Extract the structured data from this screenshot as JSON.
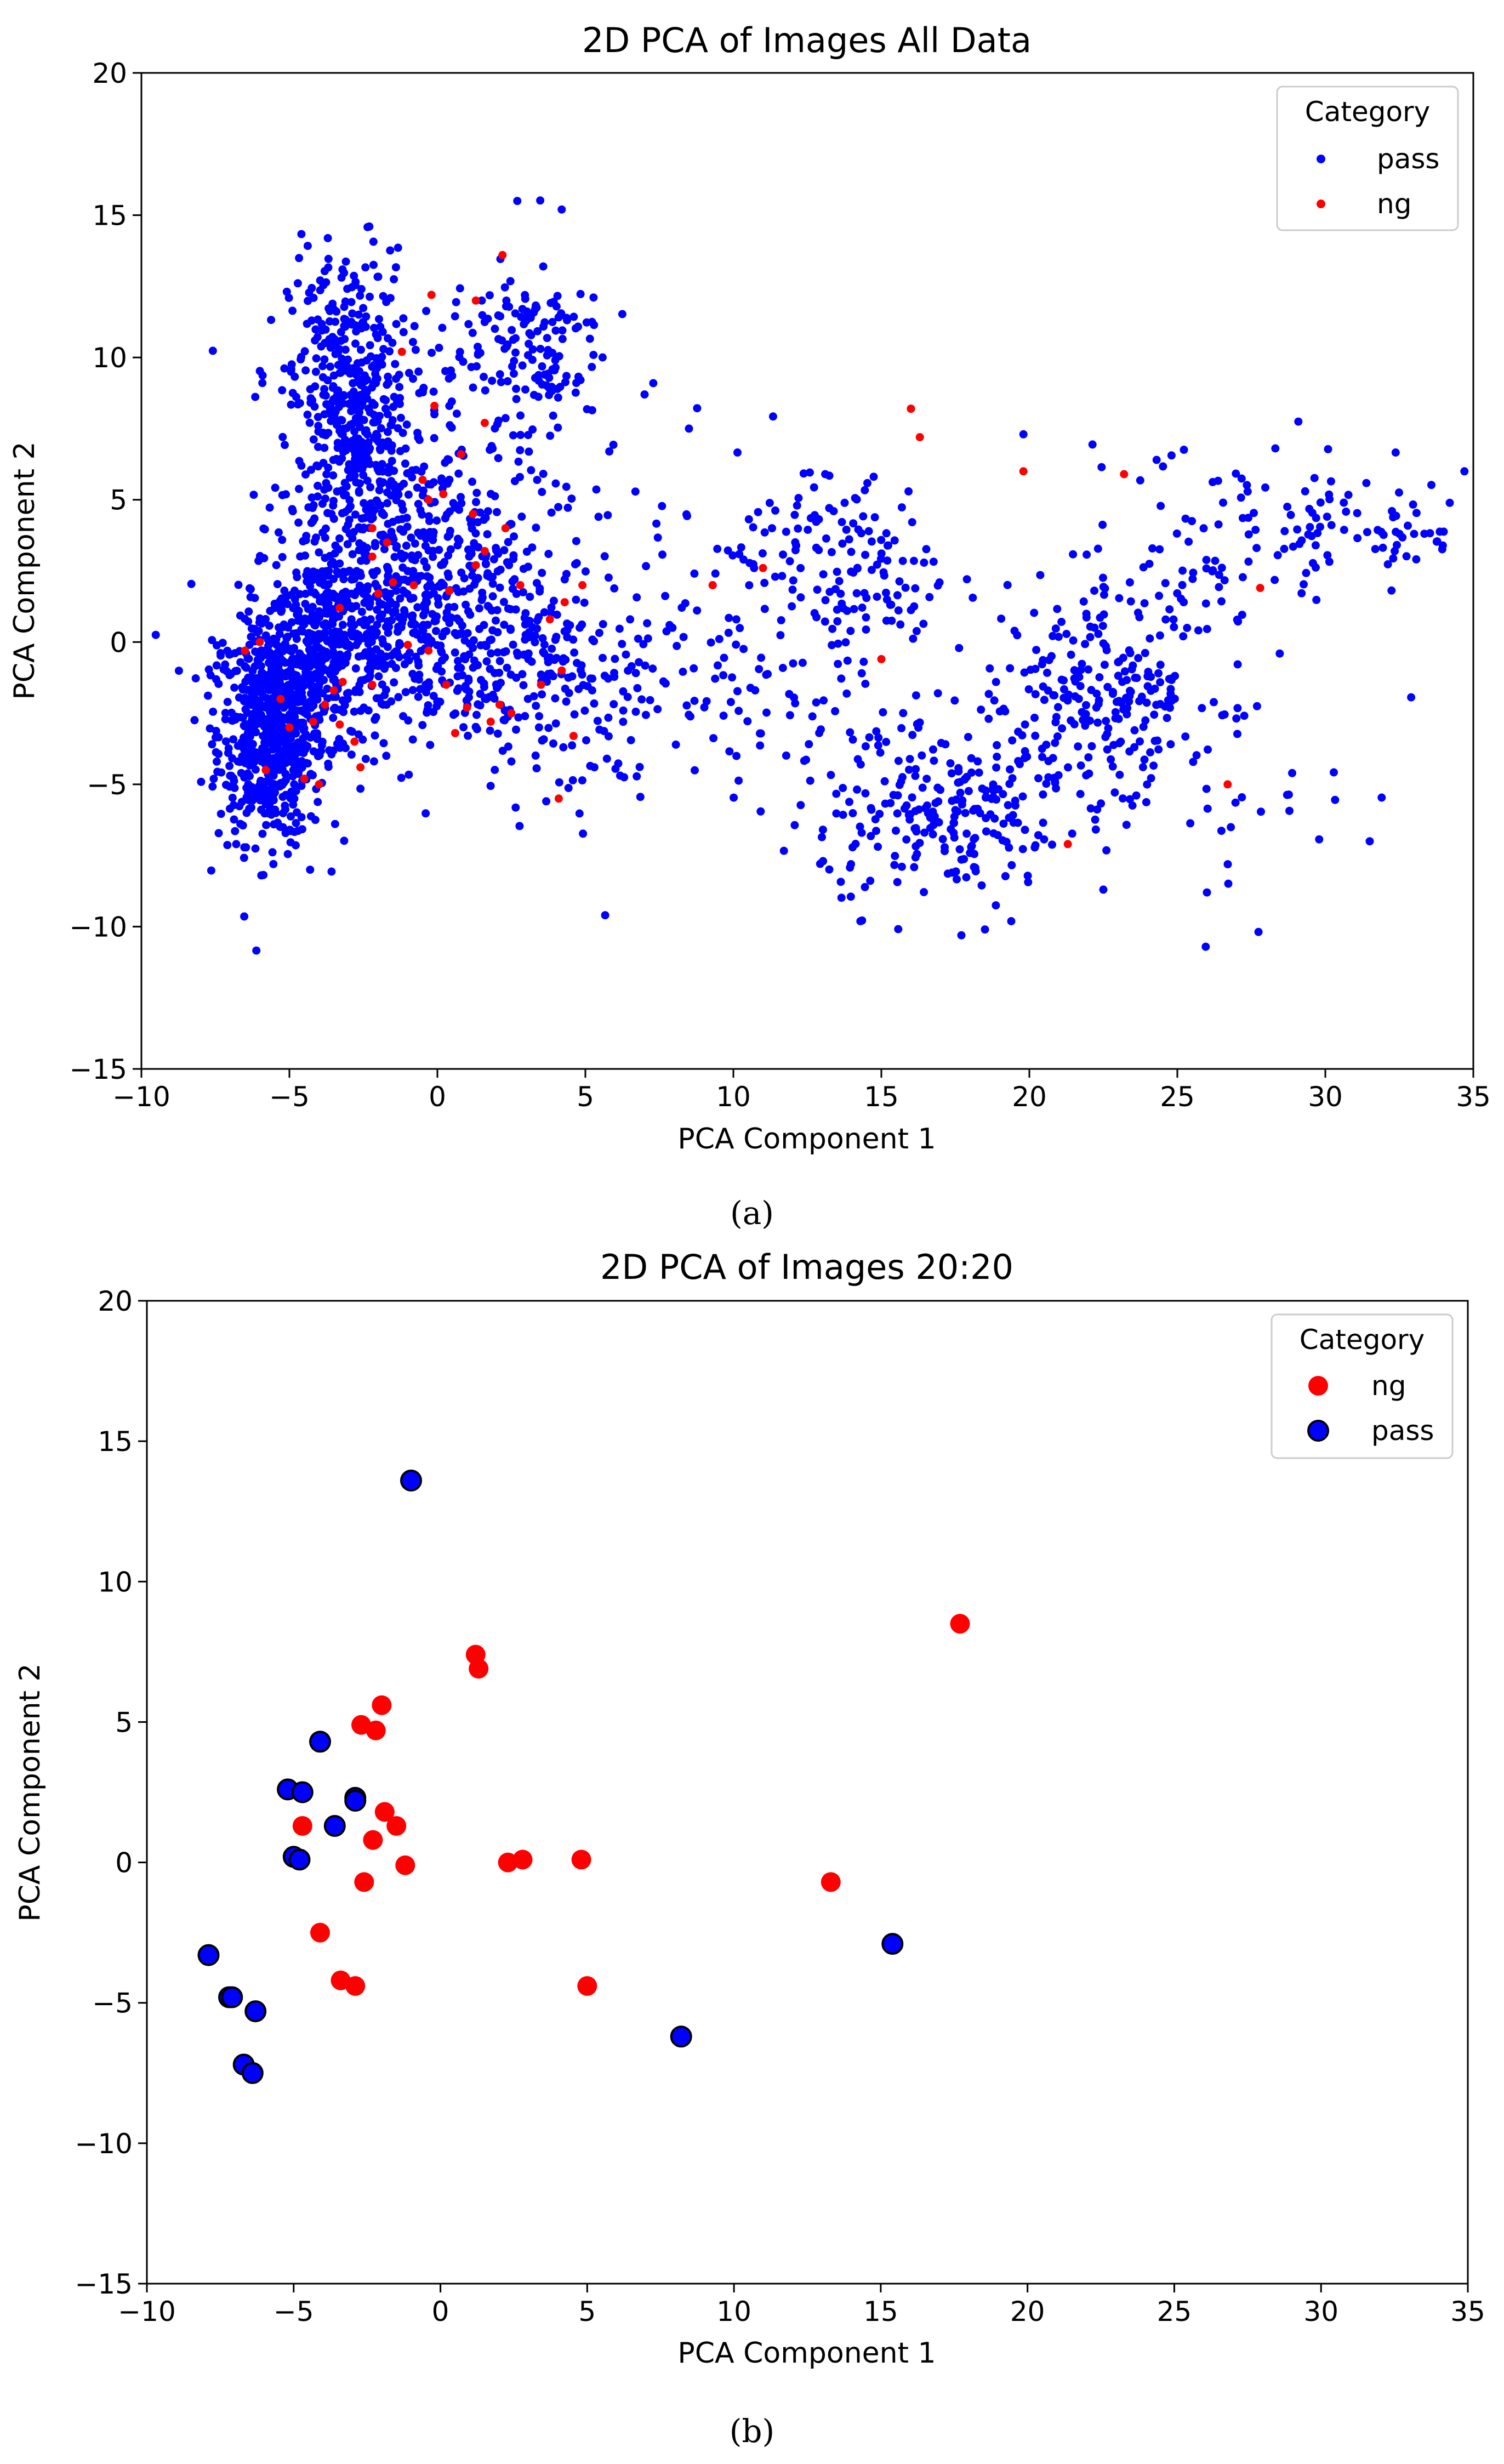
{
  "colors": {
    "pass": "#0000ff",
    "ng": "#ff0000",
    "marker_edge": "#000000",
    "axis": "#000000",
    "legend_border": "#cccccc"
  },
  "chart_data": [
    {
      "id": "a",
      "type": "scatter",
      "title": "2D PCA of Images All Data",
      "xlabel": "PCA Component 1",
      "ylabel": "PCA Component 2",
      "xlim": [
        -10,
        35
      ],
      "ylim": [
        -15,
        20
      ],
      "xticks": [
        -10,
        -5,
        0,
        5,
        10,
        15,
        20,
        25,
        30,
        35
      ],
      "yticks": [
        -15,
        -10,
        -5,
        0,
        5,
        10,
        15,
        20
      ],
      "xtick_labels": [
        "−10",
        "−5",
        "0",
        "5",
        "10",
        "15",
        "20",
        "25",
        "30",
        "35"
      ],
      "ytick_labels": [
        "−15",
        "−10",
        "−5",
        "0",
        "5",
        "10",
        "15",
        "20"
      ],
      "grid": false,
      "caption": "(a)",
      "legend": {
        "title": "Category",
        "position": "top-right",
        "entries": [
          {
            "name": "pass",
            "color": "#0000ff"
          },
          {
            "name": "ng",
            "color": "#ff0000"
          }
        ]
      },
      "series": [
        {
          "name": "pass",
          "color": "#0000ff",
          "marker": "small-dot",
          "clusters": [
            {
              "cx": -5.6,
              "cy": -3.2,
              "sx": 0.9,
              "sy": 1.9,
              "n": 650
            },
            {
              "cx": -3.0,
              "cy": 8.5,
              "sx": 1.0,
              "sy": 2.6,
              "n": 420
            },
            {
              "cx": -3.5,
              "cy": 0.0,
              "sx": 1.6,
              "sy": 1.6,
              "n": 500
            },
            {
              "cx": -1.5,
              "cy": 3.5,
              "sx": 1.8,
              "sy": 3.2,
              "n": 320
            },
            {
              "cx": 1.5,
              "cy": 0.0,
              "sx": 1.8,
              "sy": 2.0,
              "n": 280
            },
            {
              "cx": 3.0,
              "cy": 10.5,
              "sx": 1.3,
              "sy": 1.4,
              "n": 130
            },
            {
              "cx": 1.0,
              "cy": 6.5,
              "sx": 2.0,
              "sy": 2.5,
              "n": 120
            },
            {
              "cx": 5.5,
              "cy": -1.0,
              "sx": 1.8,
              "sy": 2.8,
              "n": 110
            },
            {
              "cx": 12.0,
              "cy": 3.0,
              "sx": 1.5,
              "sy": 2.0,
              "n": 90
            },
            {
              "cx": 15.0,
              "cy": 2.5,
              "sx": 1.2,
              "sy": 1.6,
              "n": 70
            },
            {
              "cx": 12.0,
              "cy": -3.5,
              "sx": 1.8,
              "sy": 2.2,
              "n": 60
            },
            {
              "cx": 17.0,
              "cy": -6.5,
              "sx": 2.0,
              "sy": 1.4,
              "n": 170
            },
            {
              "cx": 22.5,
              "cy": -1.5,
              "sx": 2.0,
              "sy": 1.8,
              "n": 230
            },
            {
              "cx": 20.0,
              "cy": -5.0,
              "sx": 2.5,
              "sy": 2.0,
              "n": 80
            },
            {
              "cx": 26.5,
              "cy": 3.5,
              "sx": 2.5,
              "sy": 1.8,
              "n": 70
            },
            {
              "cx": 31.5,
              "cy": 4.0,
              "sx": 2.0,
              "sy": 1.2,
              "n": 70
            },
            {
              "cx": 27.0,
              "cy": -6.5,
              "sx": 2.5,
              "sy": 1.5,
              "n": 20
            },
            {
              "cx": 8.5,
              "cy": 0.0,
              "sx": 1.5,
              "sy": 3.0,
              "n": 35
            }
          ],
          "points": [
            [
              2.7,
              15.5
            ],
            [
              4.2,
              15.2
            ],
            [
              -2.3,
              14.6
            ],
            [
              1.5,
              12.0
            ],
            [
              7.0,
              8.7
            ],
            [
              16.0,
              8.2
            ],
            [
              8.5,
              7.5
            ],
            [
              19.8,
              7.3
            ],
            [
              24.3,
              6.4
            ],
            [
              34.7,
              6.0
            ],
            [
              31.5,
              -7.0
            ],
            [
              26.0,
              -8.8
            ],
            [
              22.5,
              -8.7
            ],
            [
              18.5,
              -10.1
            ],
            [
              -4.3,
              -8.0
            ],
            [
              10.7,
              2.6
            ],
            [
              9.3,
              2.0
            ],
            [
              33.0,
              3.8
            ]
          ]
        },
        {
          "name": "ng",
          "color": "#ff0000",
          "marker": "small-dot",
          "points": [
            [
              2.2,
              13.6
            ],
            [
              -0.2,
              12.2
            ],
            [
              1.3,
              12.0
            ],
            [
              -1.2,
              10.2
            ],
            [
              -0.1,
              8.3
            ],
            [
              1.6,
              7.7
            ],
            [
              0.8,
              6.6
            ],
            [
              -0.3,
              5.0
            ],
            [
              0.2,
              5.2
            ],
            [
              -2.2,
              4.0
            ],
            [
              -1.7,
              3.5
            ],
            [
              -2.2,
              3.0
            ],
            [
              -2.0,
              1.7
            ],
            [
              -1.5,
              2.1
            ],
            [
              -0.8,
              2.0
            ],
            [
              0.4,
              1.8
            ],
            [
              1.6,
              3.2
            ],
            [
              2.8,
              2.0
            ],
            [
              1.3,
              2.7
            ],
            [
              -0.3,
              -0.3
            ],
            [
              -3.3,
              1.2
            ],
            [
              -3.2,
              -1.4
            ],
            [
              -3.5,
              -1.7
            ],
            [
              -3.8,
              -2.2
            ],
            [
              -3.3,
              -2.9
            ],
            [
              -2.2,
              -1.5
            ],
            [
              -1.0,
              -0.1
            ],
            [
              0.3,
              -1.5
            ],
            [
              1.0,
              -2.3
            ],
            [
              1.8,
              -2.8
            ],
            [
              2.5,
              -2.5
            ],
            [
              0.6,
              -3.2
            ],
            [
              -4.2,
              -2.8
            ],
            [
              -5.0,
              -3.0
            ],
            [
              -5.3,
              -2.0
            ],
            [
              -5.8,
              -4.5
            ],
            [
              -6.5,
              -0.3
            ],
            [
              -6.0,
              0.0
            ],
            [
              -4.5,
              -4.8
            ],
            [
              -4.0,
              -5.0
            ],
            [
              -2.6,
              -4.4
            ],
            [
              -2.8,
              -3.5
            ],
            [
              2.1,
              -2.2
            ],
            [
              3.5,
              -1.5
            ],
            [
              4.2,
              -1.0
            ],
            [
              4.6,
              -3.3
            ],
            [
              4.3,
              1.4
            ],
            [
              4.9,
              2.0
            ],
            [
              3.8,
              0.8
            ],
            [
              4.1,
              -5.5
            ],
            [
              9.3,
              2.0
            ],
            [
              11.0,
              2.6
            ],
            [
              16.0,
              8.2
            ],
            [
              16.3,
              7.2
            ],
            [
              19.8,
              6.0
            ],
            [
              23.2,
              5.9
            ],
            [
              27.8,
              1.9
            ],
            [
              26.7,
              -5.0
            ],
            [
              21.3,
              -7.1
            ],
            [
              15.0,
              -0.6
            ],
            [
              -0.5,
              5.7
            ],
            [
              1.2,
              4.5
            ],
            [
              2.3,
              4.0
            ]
          ]
        }
      ]
    },
    {
      "id": "b",
      "type": "scatter",
      "title": "2D PCA of Images 20:20",
      "xlabel": "PCA Component 1",
      "ylabel": "PCA Component 2",
      "xlim": [
        -10,
        35
      ],
      "ylim": [
        -15,
        20
      ],
      "xticks": [
        -10,
        -5,
        0,
        5,
        10,
        15,
        20,
        25,
        30,
        35
      ],
      "yticks": [
        -15,
        -10,
        -5,
        0,
        5,
        10,
        15,
        20
      ],
      "xtick_labels": [
        "−10",
        "−5",
        "0",
        "5",
        "10",
        "15",
        "20",
        "25",
        "30",
        "35"
      ],
      "ytick_labels": [
        "−15",
        "−10",
        "−5",
        "0",
        "5",
        "10",
        "15",
        "20"
      ],
      "grid": false,
      "caption": "(b)",
      "legend": {
        "title": "Category",
        "position": "top-right",
        "entries": [
          {
            "name": "ng",
            "color": "#ff0000"
          },
          {
            "name": "pass",
            "color": "#0000ff"
          }
        ]
      },
      "series": [
        {
          "name": "ng",
          "color": "#ff0000",
          "marker": "large-dot",
          "points": [
            [
              17.7,
              8.5
            ],
            [
              1.2,
              7.4
            ],
            [
              1.3,
              6.9
            ],
            [
              -2.0,
              5.6
            ],
            [
              -2.7,
              4.9
            ],
            [
              -2.2,
              4.7
            ],
            [
              -1.9,
              1.8
            ],
            [
              -1.5,
              1.3
            ],
            [
              -2.3,
              0.8
            ],
            [
              -4.7,
              1.3
            ],
            [
              -1.2,
              -0.1
            ],
            [
              2.3,
              0.0
            ],
            [
              2.8,
              0.1
            ],
            [
              4.8,
              0.1
            ],
            [
              13.3,
              -0.7
            ],
            [
              -2.6,
              -0.7
            ],
            [
              -4.1,
              -2.5
            ],
            [
              -3.4,
              -4.2
            ],
            [
              -2.9,
              -4.4
            ],
            [
              5.0,
              -4.4
            ]
          ]
        },
        {
          "name": "pass",
          "color": "#0000ff",
          "edge": "#000000",
          "marker": "large-dot-edged",
          "points": [
            [
              -1.0,
              13.6
            ],
            [
              -4.1,
              4.3
            ],
            [
              -5.2,
              2.6
            ],
            [
              -4.7,
              2.5
            ],
            [
              -2.9,
              2.3
            ],
            [
              -2.9,
              2.2
            ],
            [
              -3.6,
              1.3
            ],
            [
              -5.0,
              0.2
            ],
            [
              -4.8,
              0.1
            ],
            [
              -7.9,
              -3.3
            ],
            [
              -7.2,
              -4.8
            ],
            [
              -7.1,
              -4.8
            ],
            [
              -6.3,
              -5.3
            ],
            [
              -6.7,
              -7.2
            ],
            [
              -6.4,
              -7.5
            ],
            [
              8.2,
              -6.2
            ],
            [
              15.4,
              -2.9
            ]
          ]
        }
      ]
    }
  ]
}
